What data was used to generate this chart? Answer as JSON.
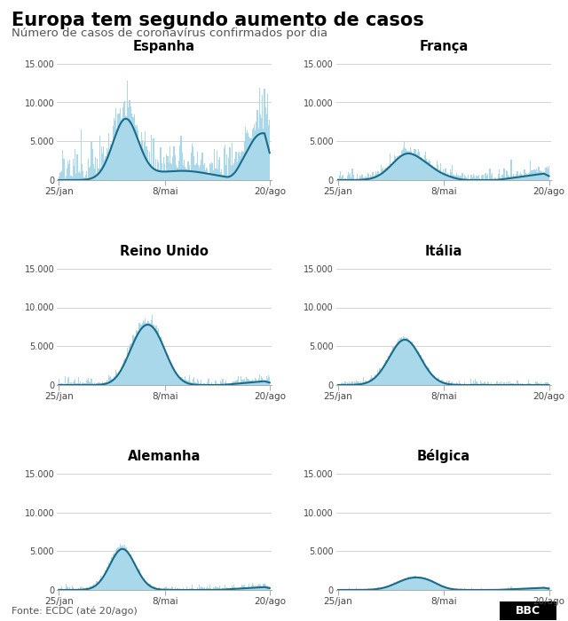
{
  "title": "Europa tem segundo aumento de casos",
  "subtitle": "Número de casos de coronavírus confirmados por dia",
  "source": "Fonte: ECDC (até 20/ago)",
  "countries": [
    "Espanha",
    "França",
    "Reino Unido",
    "Itália",
    "Alemanha",
    "Bélgica"
  ],
  "x_ticks_labels": [
    "25/jan",
    "8/mai",
    "20/ago"
  ],
  "y_ticks": [
    0,
    5000,
    10000,
    15000
  ],
  "y_max": 16000,
  "bar_color": "#a8d8ea",
  "line_color": "#1a6b8a",
  "bg_color": "#ffffff",
  "grid_color": "#cccccc",
  "title_color": "#000000",
  "subtitle_color": "#555555",
  "source_color": "#555555"
}
